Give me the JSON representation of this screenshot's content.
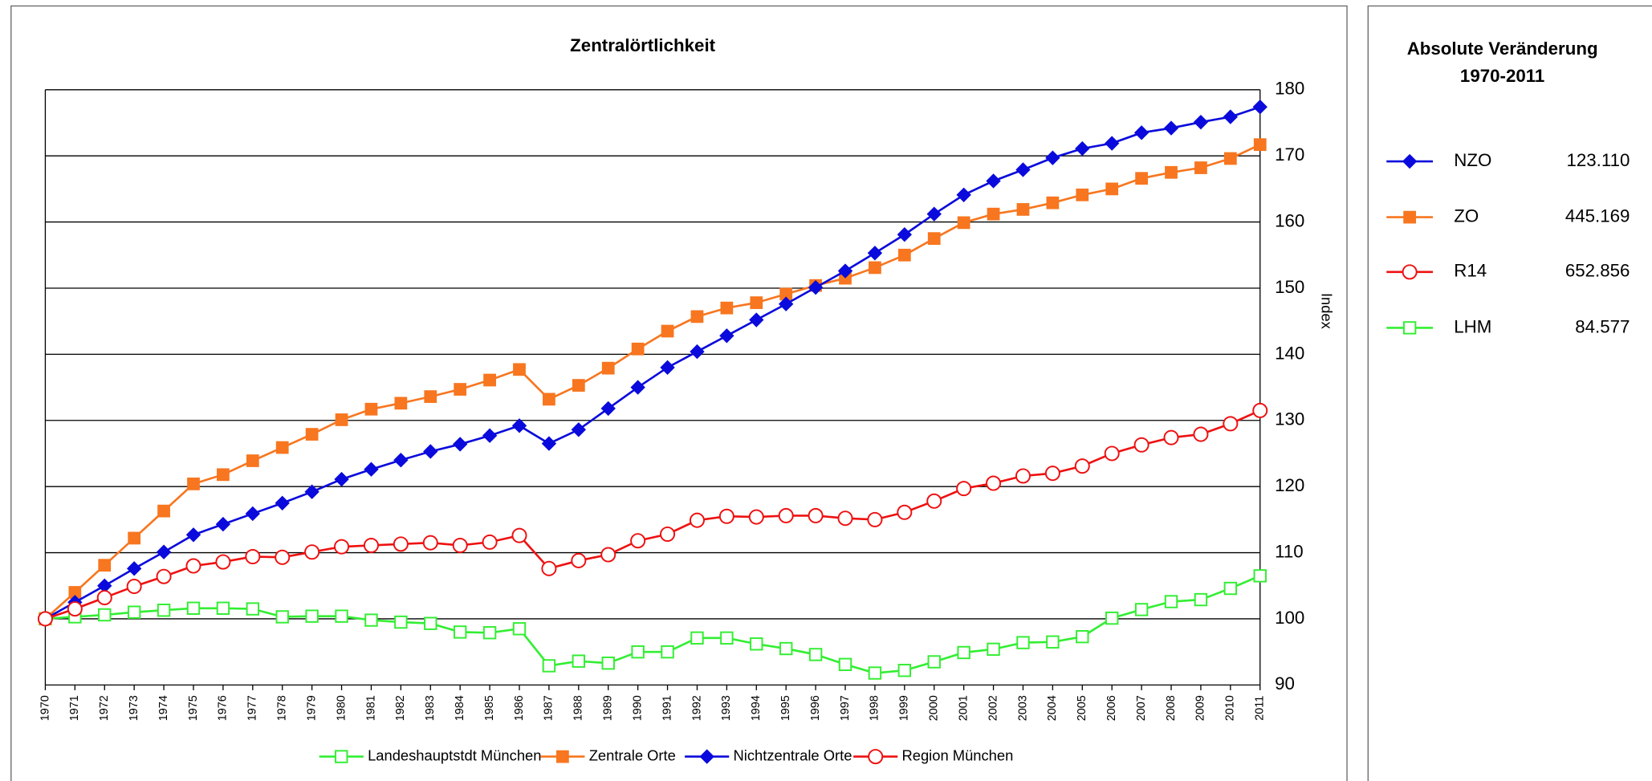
{
  "chart_data": {
    "type": "line",
    "title": "Zentralörtlichkeit",
    "y_label": "Index",
    "x": [
      1970,
      1971,
      1972,
      1973,
      1974,
      1975,
      1976,
      1977,
      1978,
      1979,
      1980,
      1981,
      1982,
      1983,
      1984,
      1985,
      1986,
      1987,
      1988,
      1989,
      1990,
      1991,
      1992,
      1993,
      1994,
      1995,
      1996,
      1997,
      1998,
      1999,
      2000,
      2001,
      2002,
      2003,
      2004,
      2005,
      2006,
      2007,
      2008,
      2009,
      2010,
      2011
    ],
    "xlim": [
      1970,
      2011
    ],
    "ylim": [
      90,
      180
    ],
    "yticks": [
      90,
      100,
      110,
      120,
      130,
      140,
      150,
      160,
      170,
      180
    ],
    "grid": true,
    "series": [
      {
        "name": "Landeshauptstdt München",
        "color": "#33ee33",
        "marker": "open-square",
        "values": [
          100,
          100.3,
          100.6,
          101,
          101.3,
          101.6,
          101.6,
          101.5,
          100.3,
          100.4,
          100.4,
          99.8,
          99.5,
          99.3,
          98,
          97.9,
          98.5,
          92.9,
          93.6,
          93.3,
          95,
          95,
          97.1,
          97.1,
          96.2,
          95.5,
          94.6,
          93.1,
          91.8,
          92.2,
          93.5,
          94.9,
          95.4,
          96.4,
          96.5,
          97.3,
          100.1,
          101.4,
          102.6,
          102.9,
          104.6,
          106.5
        ]
      },
      {
        "name": "Zentrale Orte",
        "color": "#f7761f",
        "marker": "square",
        "values": [
          100,
          104,
          108.1,
          112.2,
          116.3,
          120.4,
          121.8,
          123.9,
          125.9,
          127.9,
          130.1,
          131.7,
          132.6,
          133.6,
          134.7,
          136.1,
          137.7,
          133.2,
          135.3,
          137.9,
          140.8,
          143.5,
          145.7,
          147,
          147.8,
          149.1,
          150.4,
          151.5,
          153.1,
          155,
          157.5,
          159.9,
          161.2,
          161.9,
          162.9,
          164.1,
          165,
          166.6,
          167.5,
          168.2,
          169.6,
          171.7
        ]
      },
      {
        "name": "Nichtzentrale Orte",
        "color": "#0a0adc",
        "marker": "diamond",
        "values": [
          100,
          102.5,
          105,
          107.6,
          110.1,
          112.7,
          114.3,
          115.9,
          117.5,
          119.2,
          121.1,
          122.6,
          124,
          125.3,
          126.4,
          127.7,
          129.2,
          126.5,
          128.6,
          131.8,
          135,
          138,
          140.4,
          142.8,
          145.2,
          147.6,
          150.1,
          152.6,
          155.3,
          158.1,
          161.2,
          164.1,
          166.2,
          167.9,
          169.7,
          171.1,
          171.9,
          173.5,
          174.2,
          175.1,
          175.9,
          177.4
        ]
      },
      {
        "name": "Region München",
        "color": "#ee1111",
        "marker": "open-circle",
        "values": [
          100,
          101.5,
          103.2,
          104.9,
          106.4,
          108,
          108.6,
          109.4,
          109.3,
          110.1,
          110.9,
          111.1,
          111.3,
          111.5,
          111.1,
          111.6,
          112.6,
          107.6,
          108.8,
          109.7,
          111.8,
          112.8,
          114.9,
          115.5,
          115.4,
          115.6,
          115.6,
          115.2,
          115,
          116.1,
          117.8,
          119.7,
          120.5,
          121.6,
          122,
          123.1,
          125,
          126.3,
          127.4,
          127.9,
          129.5,
          131.5
        ]
      }
    ]
  },
  "summary": {
    "title": "Absolute Veränderung",
    "subtitle": "1970-2011",
    "rows": [
      {
        "name": "NZO",
        "value": "123.110"
      },
      {
        "name": "ZO",
        "value": "445.169"
      },
      {
        "name": "R14",
        "value": "652.856"
      },
      {
        "name": "LHM",
        "value": "84.577"
      }
    ]
  }
}
